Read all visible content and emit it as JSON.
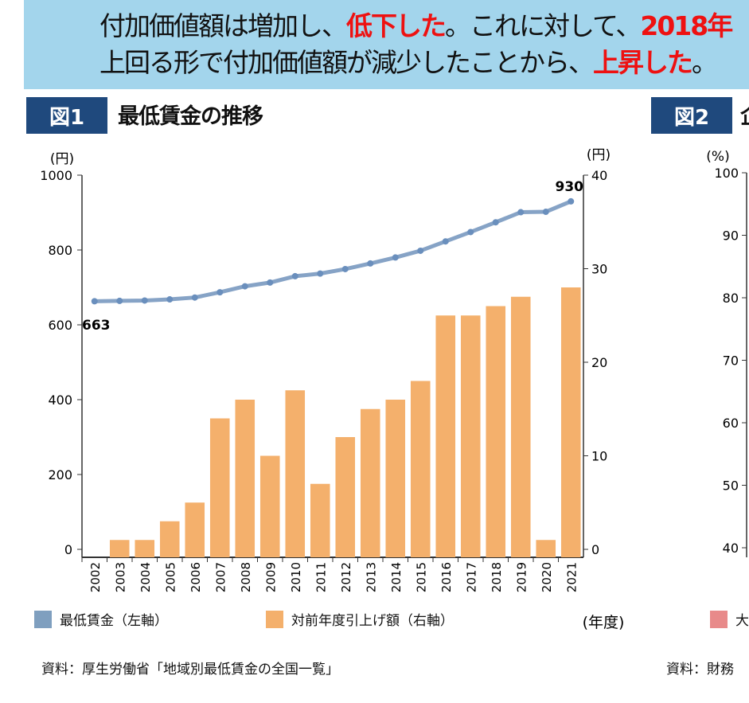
{
  "banner": {
    "line1": {
      "a": "付加価値額は増加し、",
      "b": "低下した",
      "c": "。これに対して、",
      "d": "2018年"
    },
    "line2": {
      "a": "上回る形で付加価値額が減少したことから、",
      "b": "上昇した",
      "c": "。"
    }
  },
  "figure1": {
    "tag": "図1",
    "title": "最低賃金の推移",
    "legend": [
      {
        "label": "最低賃金（左軸）",
        "color": "#7f9fbf"
      },
      {
        "label": "対前年度引上げ額（右軸）",
        "color": "#f4b06c"
      }
    ],
    "source": "資料：厚生労働省「地域別最低賃金の全国一覧」"
  },
  "figure2": {
    "tag": "図2",
    "title": "企",
    "yunit": "(%)",
    "yticks": [
      "100",
      "90",
      "80",
      "70",
      "60",
      "50",
      "40"
    ],
    "legend_partial": "大",
    "legend_color": "#e88a8a",
    "source": "資料：財務"
  },
  "chart_data": {
    "type": "bar+line",
    "categories": [
      "2002",
      "2003",
      "2004",
      "2005",
      "2006",
      "2007",
      "2008",
      "2009",
      "2010",
      "2011",
      "2012",
      "2013",
      "2014",
      "2015",
      "2016",
      "2017",
      "2018",
      "2019",
      "2020",
      "2021"
    ],
    "xlabel": "(年度)",
    "ylabel_left": "(円)",
    "ylabel_right": "(円)",
    "ylim_left": [
      0,
      1000
    ],
    "ylim_right": [
      0,
      40
    ],
    "yticks_left": [
      "0",
      "200",
      "400",
      "600",
      "800",
      "1000"
    ],
    "yticks_right": [
      "0",
      "10",
      "20",
      "30",
      "40"
    ],
    "series": [
      {
        "name": "最低賃金（左軸）",
        "type": "line",
        "axis": "left",
        "color": "#7f9fbf",
        "values": [
          663,
          664,
          665,
          668,
          673,
          687,
          703,
          713,
          730,
          737,
          749,
          764,
          780,
          798,
          823,
          848,
          874,
          901,
          902,
          930
        ]
      },
      {
        "name": "対前年度引上げ額（右軸）",
        "type": "bar",
        "axis": "right",
        "color": "#f4b06c",
        "values": [
          0,
          1,
          1,
          3,
          5,
          14,
          16,
          10,
          17,
          7,
          12,
          15,
          16,
          18,
          25,
          25,
          26,
          27,
          1,
          28
        ]
      }
    ],
    "annotations": [
      "663",
      "930"
    ],
    "grid": false,
    "legend_placement": "bottom"
  }
}
